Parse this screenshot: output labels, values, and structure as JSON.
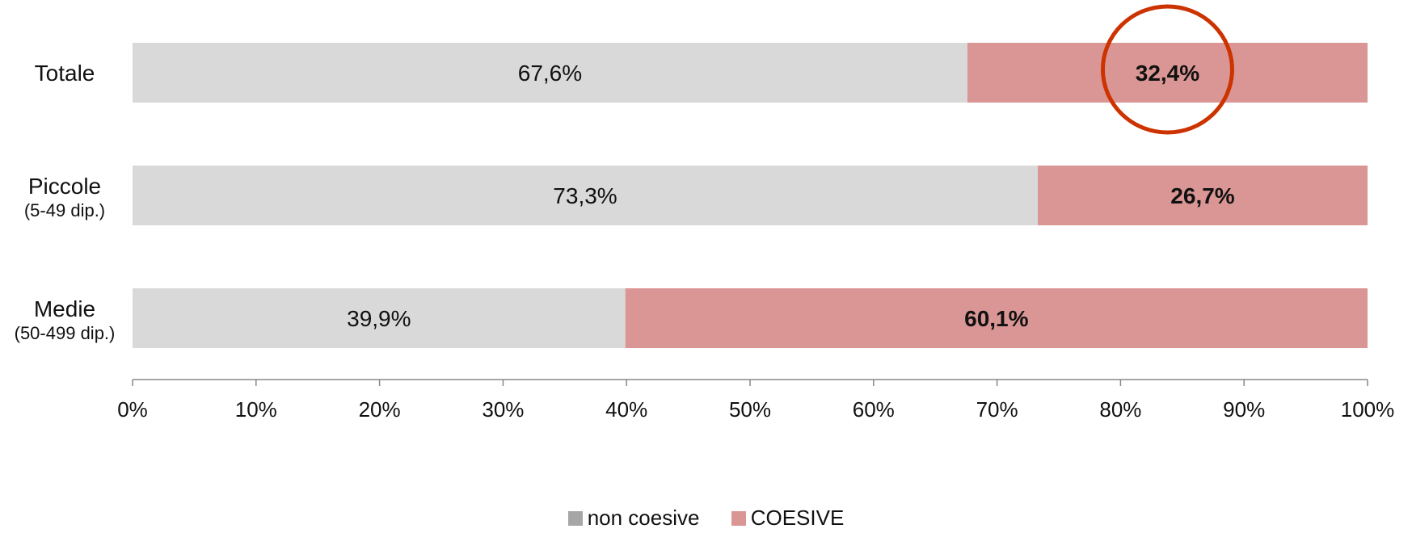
{
  "chart_data": {
    "type": "bar",
    "orientation": "horizontal",
    "stacked": true,
    "percent": true,
    "categories": [
      {
        "label": "Totale",
        "sublabel": ""
      },
      {
        "label": "Piccole",
        "sublabel": "(5-49 dip.)"
      },
      {
        "label": "Medie",
        "sublabel": "(50-499 dip.)"
      }
    ],
    "series": [
      {
        "name": "non coesive",
        "color": "#d9d9d9",
        "values": [
          67.6,
          73.3,
          39.9
        ],
        "labels": [
          "67,6%",
          "73,3%",
          "39,9%"
        ],
        "bold": false
      },
      {
        "name": "COESIVE",
        "color": "#da9694",
        "values": [
          32.4,
          26.7,
          60.1
        ],
        "labels": [
          "32,4%",
          "26,7%",
          "60,1%"
        ],
        "bold": true
      }
    ],
    "xlim": [
      0,
      100
    ],
    "xticks": [
      "0%",
      "10%",
      "20%",
      "30%",
      "40%",
      "50%",
      "60%",
      "70%",
      "80%",
      "90%",
      "100%"
    ],
    "grid": false,
    "legend_position": "bottom",
    "highlight": {
      "category": "Totale",
      "series": "COESIVE",
      "shape": "circle",
      "color": "#cc3300"
    }
  }
}
